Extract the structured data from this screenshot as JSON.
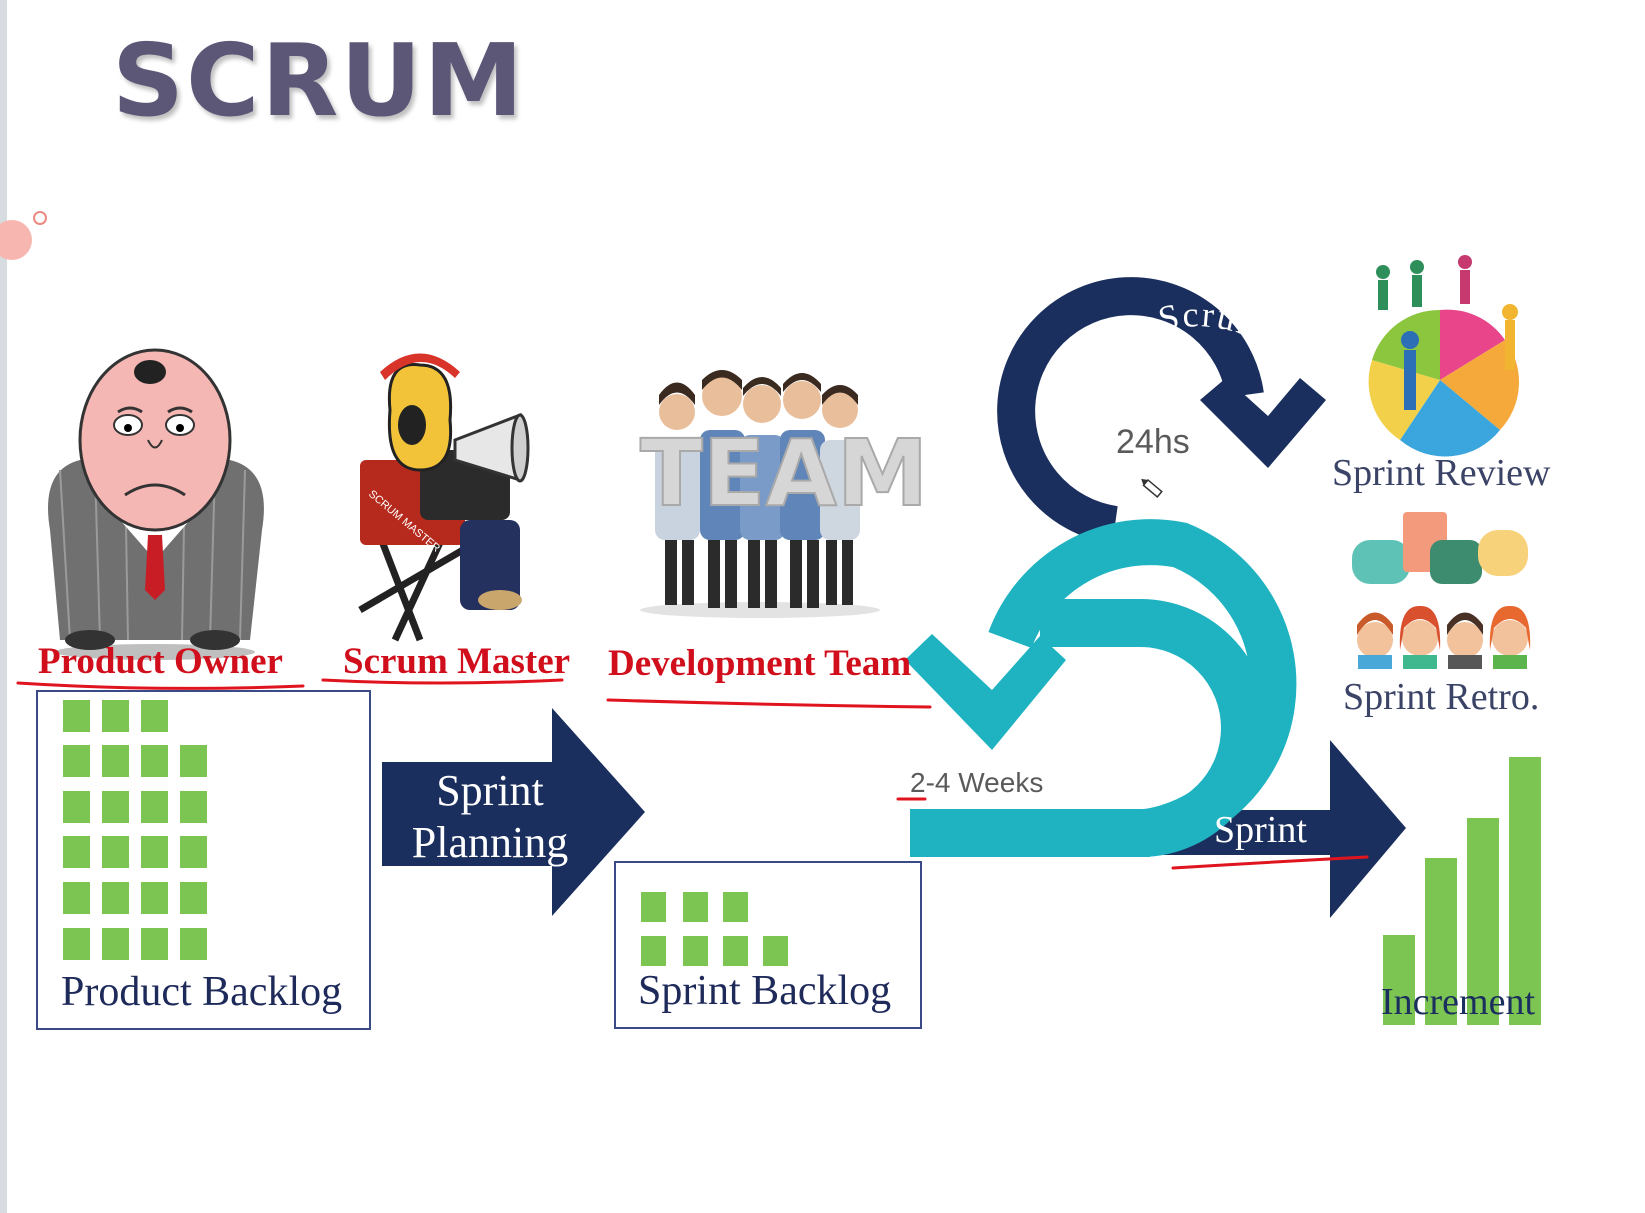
{
  "slide": {
    "title": "SCRUM",
    "roles": {
      "product_owner": "Product Owner",
      "scrum_master": "Scrum Master",
      "development_team": "Development Team"
    },
    "team_sign": "TEAM",
    "chair_text": "SCRUM MASTER",
    "product_backlog": "Product Backlog",
    "sprint_planning_line1": "Sprint",
    "sprint_planning_line2": "Planning",
    "sprint_backlog": "Sprint Backlog",
    "daily_scrum": "Daily Scrum",
    "daily_hours": "24hs",
    "sprint_length": "2-4 Weeks",
    "sprint": "Sprint",
    "sprint_review": "Sprint Review",
    "sprint_retro": "Sprint Retro.",
    "increment": "Increment"
  },
  "colors": {
    "title": "#5c5777",
    "role_text": "#d10f1c",
    "navy": "#1b2f5e",
    "teal": "#1fb3c2",
    "green": "#7dc552",
    "annotation": "#e0141e"
  },
  "icons": [
    "boss-character-icon",
    "scrum-master-megaphone-icon",
    "team-people-icon",
    "people-pie-chart-icon",
    "chat-people-icon",
    "pencil-cursor-icon"
  ]
}
